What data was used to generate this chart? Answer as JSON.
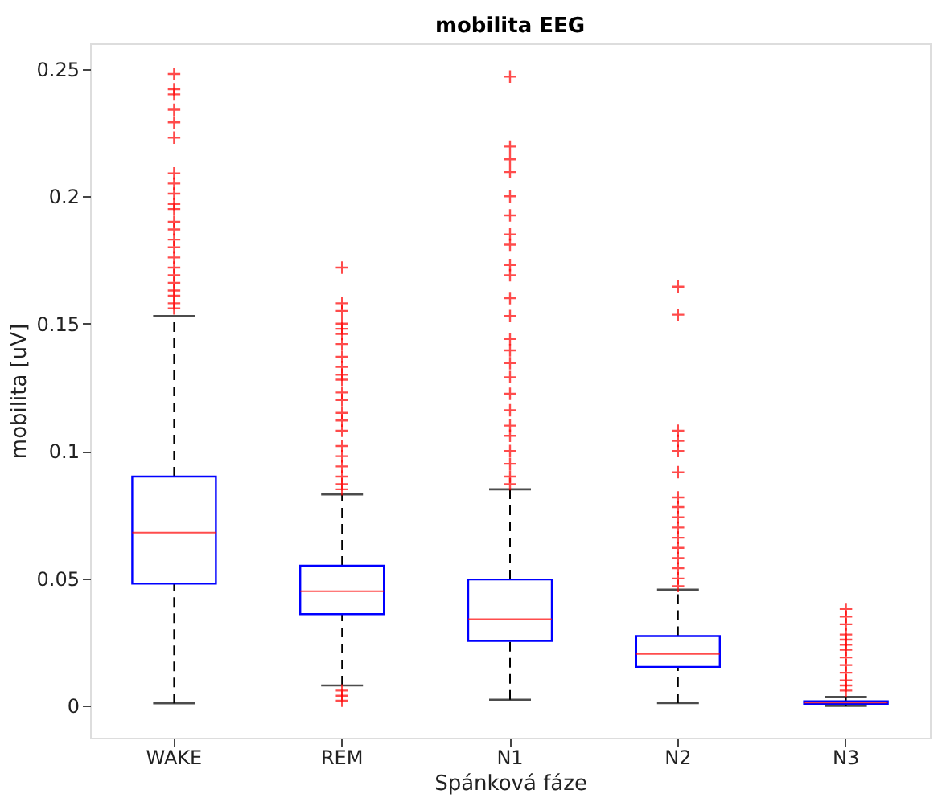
{
  "chart_data": {
    "type": "box",
    "title": "mobilita EEG",
    "xlabel": "Spánková fáze",
    "ylabel": "mobilita [uV]",
    "categories": [
      "WAKE",
      "REM",
      "N1",
      "N2",
      "N3"
    ],
    "color": "#0000ff",
    "grid": false,
    "ylim": [
      -0.0125,
      0.26
    ],
    "yticks": [
      0,
      0.05,
      0.1,
      0.15,
      0.2,
      0.25
    ],
    "boxes": [
      {
        "low": 0.001,
        "q1": 0.048,
        "median": 0.068,
        "q3": 0.09,
        "high": 0.153,
        "outliers": [
          0.248,
          0.242,
          0.24,
          0.234,
          0.229,
          0.223,
          0.209,
          0.205,
          0.201,
          0.197,
          0.195,
          0.19,
          0.187,
          0.183,
          0.18,
          0.176,
          0.172,
          0.169,
          0.166,
          0.163,
          0.161,
          0.158,
          0.156
        ]
      },
      {
        "low": 0.008,
        "q1": 0.036,
        "median": 0.045,
        "q3": 0.055,
        "high": 0.083,
        "outliers": [
          0.172,
          0.158,
          0.155,
          0.15,
          0.148,
          0.146,
          0.142,
          0.137,
          0.133,
          0.13,
          0.128,
          0.123,
          0.12,
          0.115,
          0.112,
          0.108,
          0.102,
          0.098,
          0.094,
          0.09,
          0.087,
          0.085,
          0.006,
          0.004,
          0.002
        ]
      },
      {
        "low": 0.0024,
        "q1": 0.0255,
        "median": 0.034,
        "q3": 0.0496,
        "high": 0.085,
        "outliers": [
          0.247,
          0.2195,
          0.2145,
          0.2095,
          0.2,
          0.1925,
          0.185,
          0.181,
          0.173,
          0.169,
          0.16,
          0.153,
          0.144,
          0.1395,
          0.1345,
          0.129,
          0.1225,
          0.116,
          0.11,
          0.106,
          0.1,
          0.095,
          0.09,
          0.087
        ]
      },
      {
        "low": 0.0011,
        "q1": 0.0153,
        "median": 0.0204,
        "q3": 0.0274,
        "high": 0.0456,
        "outliers": [
          0.1645,
          0.1535,
          0.108,
          0.104,
          0.1,
          0.0917,
          0.0818,
          0.078,
          0.074,
          0.07,
          0.066,
          0.062,
          0.058,
          0.054,
          0.05,
          0.047
        ]
      },
      {
        "low": 0.0,
        "q1": 0.0008,
        "median": 0.0013,
        "q3": 0.0018,
        "high": 0.0035,
        "outliers": [
          0.038,
          0.035,
          0.032,
          0.028,
          0.026,
          0.024,
          0.022,
          0.019,
          0.016,
          0.013,
          0.01,
          0.008,
          0.006
        ]
      }
    ]
  }
}
